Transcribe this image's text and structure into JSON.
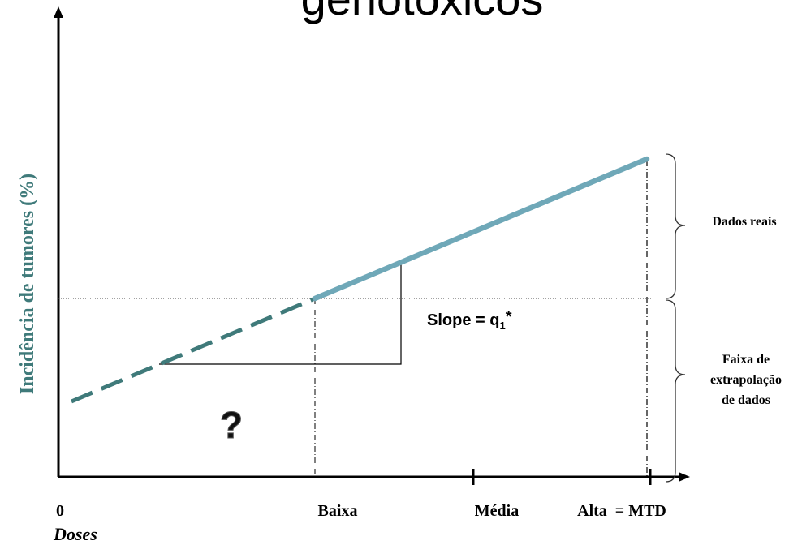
{
  "title": "genotóxicos",
  "y_axis_label": "Incidência de tumores (%)",
  "x_axis_label": "Doses",
  "tick_labels": {
    "zero": "0",
    "baixa": "Baixa",
    "media": "Média",
    "alta": "Alta  = MTD"
  },
  "slope_label": {
    "prefix": "Slope = q",
    "subscript": "1",
    "suffix": "*"
  },
  "question_mark": "?",
  "bracket_labels": {
    "dados_reais": "Dados reais",
    "faixa_line1": "Faixa de",
    "faixa_line2": "extrapolação",
    "faixa_line3": "de dados"
  },
  "colors": {
    "observed_line": "#6fa8b8",
    "extrapolated_line": "#3f7a7a",
    "y_label": "#3f7a7a",
    "axes": "#000000"
  }
}
